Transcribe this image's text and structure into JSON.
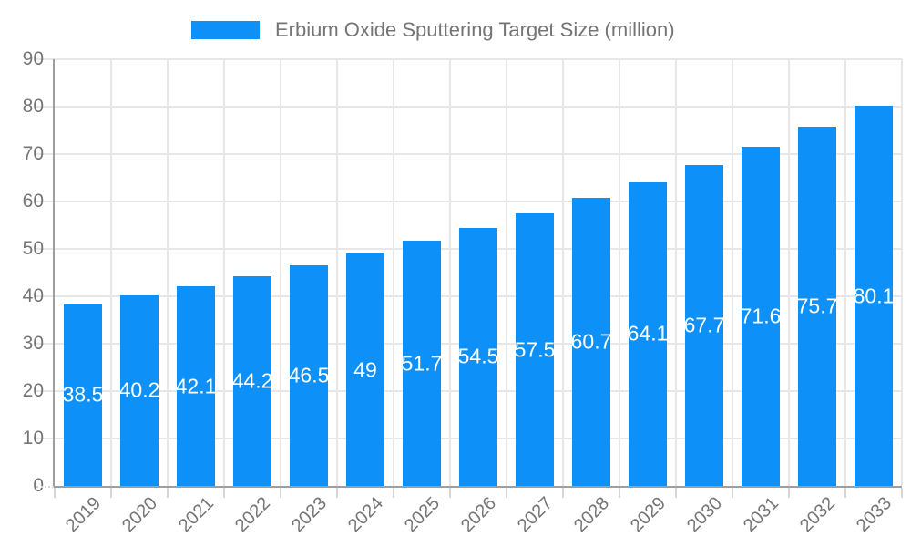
{
  "legend": {
    "label": "Erbium Oxide Sputtering Target Size (million)"
  },
  "colors": {
    "bar": "#0e90f9",
    "grid": "#e7e7e7",
    "axis": "#9e9e9e",
    "tick": "#d6d6d6",
    "text": "#757575",
    "value_label": "#ffffff",
    "background": "#ffffff"
  },
  "chart_data": {
    "type": "bar",
    "title": "",
    "series_name": "Erbium Oxide Sputtering Target Size (million)",
    "categories": [
      "2019",
      "2020",
      "2021",
      "2022",
      "2023",
      "2024",
      "2025",
      "2026",
      "2027",
      "2028",
      "2029",
      "2030",
      "2031",
      "2032",
      "2033"
    ],
    "values": [
      38.5,
      40.2,
      42.1,
      44.2,
      46.5,
      49,
      51.7,
      54.5,
      57.5,
      60.7,
      64.1,
      67.7,
      71.6,
      75.7,
      80.1
    ],
    "value_labels": [
      "38.5",
      "40.2",
      "42.1",
      "44.2",
      "46.5",
      "49",
      "51.7",
      "54.5",
      "57.5",
      "60.7",
      "64.1",
      "67.7",
      "71.6",
      "75.7",
      "80.1"
    ],
    "xlabel": "",
    "ylabel": "",
    "ylim": [
      0,
      90
    ],
    "yticks": [
      "0",
      "10",
      "20",
      "30",
      "40",
      "50",
      "60",
      "70",
      "80",
      "90"
    ],
    "grid": true,
    "legend_position": "top",
    "value_label_position": "inside-center"
  }
}
